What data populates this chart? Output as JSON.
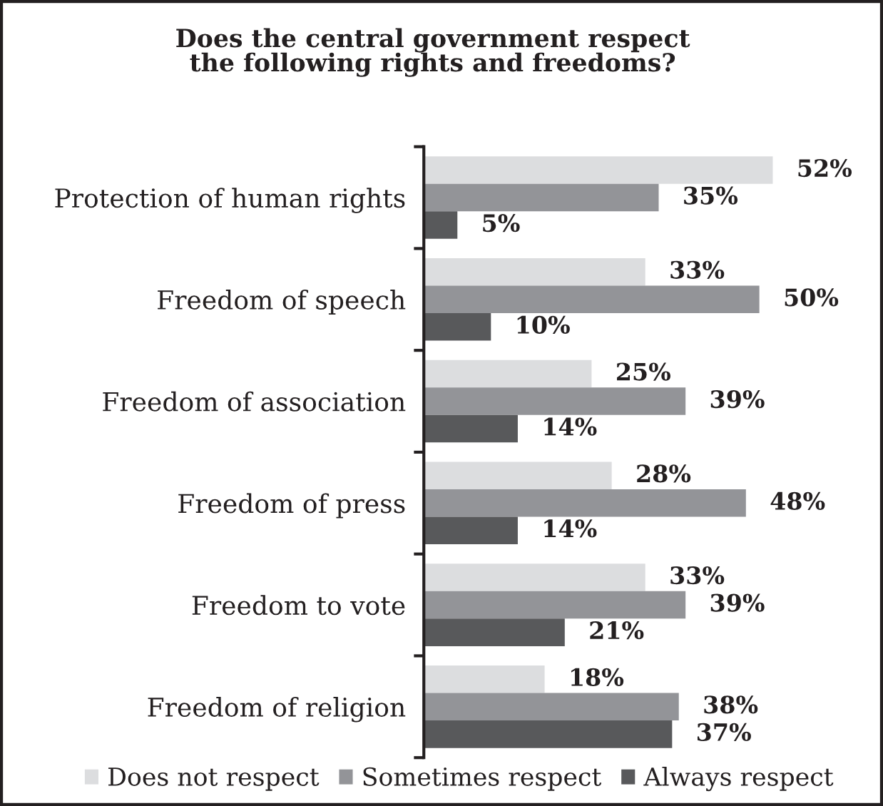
{
  "chart_data": {
    "type": "bar",
    "orientation": "horizontal",
    "title": "Does the central government respect\nthe following rights and freedoms?",
    "categories": [
      "Protection of human rights",
      "Freedom of speech",
      "Freedom of association",
      "Freedom of press",
      "Freedom to vote",
      "Freedom of religion"
    ],
    "series": [
      {
        "name": "Does not respect",
        "color": "#dcdddf",
        "values": [
          52,
          33,
          25,
          28,
          33,
          18
        ],
        "value_labels": [
          "52%",
          "33%",
          "25%",
          "28%",
          "33%",
          "18%"
        ]
      },
      {
        "name": "Sometimes respect",
        "color": "#939498",
        "values": [
          35,
          50,
          39,
          48,
          39,
          38
        ],
        "value_labels": [
          "35%",
          "50%",
          "39%",
          "48%",
          "39%",
          "38%"
        ]
      },
      {
        "name": "Always respect",
        "color": "#58595b",
        "values": [
          5,
          10,
          14,
          14,
          21,
          37
        ],
        "value_labels": [
          "5%",
          "10%",
          "14%",
          "14%",
          "21%",
          "37%"
        ]
      }
    ],
    "legend": "bottom",
    "tick_labels": "y"
  }
}
